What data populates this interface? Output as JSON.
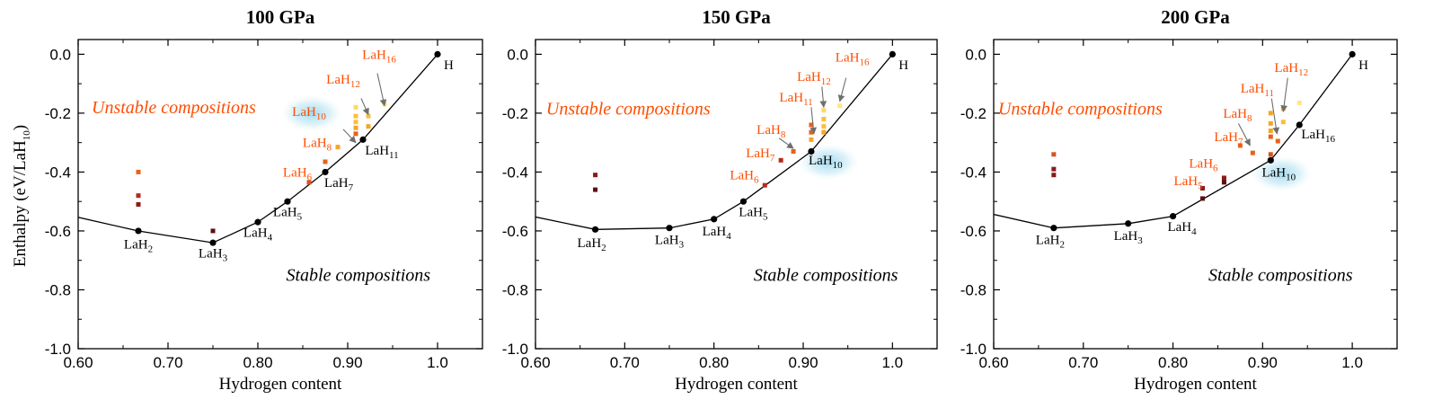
{
  "chart_data": [
    {
      "type": "scatter",
      "title": "100 GPa",
      "xlabel": "Hydrogen content",
      "ylabel": "Enthalpy (eV/LaH10)",
      "xlim": [
        0.6,
        1.05
      ],
      "ylim": [
        -1.0,
        0.05
      ],
      "xticks": [
        "0.60",
        "0.70",
        "0.80",
        "0.90",
        "1.0"
      ],
      "yticks": [
        "0.0",
        "-0.2",
        "-0.4",
        "-0.6",
        "-0.8",
        "-1.0"
      ],
      "region_labels": [
        {
          "text": "Unstable compositions",
          "color": "#ff4d00",
          "x": 0.615,
          "y": -0.2
        },
        {
          "text": "Stable compositions",
          "color": "#000000",
          "x": 0.8315,
          "y": -0.77
        }
      ],
      "hull": [
        [
          0.58,
          -0.54
        ],
        [
          0.667,
          -0.6
        ],
        [
          0.75,
          -0.64
        ],
        [
          0.8,
          -0.57
        ],
        [
          0.833,
          -0.5
        ],
        [
          0.875,
          -0.4
        ],
        [
          0.917,
          -0.29
        ],
        [
          1.0,
          0.0
        ]
      ],
      "stable_points": [
        {
          "x": 0.667,
          "y": -0.6,
          "base": "LaH",
          "sub": "2",
          "lx": 0.667,
          "ly": -0.66
        },
        {
          "x": 0.75,
          "y": -0.64,
          "base": "LaH",
          "sub": "3",
          "lx": 0.75,
          "ly": -0.69
        },
        {
          "x": 0.8,
          "y": -0.57,
          "base": "LaH",
          "sub": "4",
          "lx": 0.8,
          "ly": -0.62
        },
        {
          "x": 0.833,
          "y": -0.5,
          "base": "LaH",
          "sub": "5",
          "lx": 0.833,
          "ly": -0.55
        },
        {
          "x": 0.875,
          "y": -0.4,
          "base": "LaH",
          "sub": "7",
          "lx": 0.89,
          "ly": -0.45
        },
        {
          "x": 0.917,
          "y": -0.29,
          "base": "LaH",
          "sub": "11",
          "lx": 0.938,
          "ly": -0.34
        },
        {
          "x": 1.0,
          "y": 0.0,
          "base": "H",
          "sub": "",
          "lx": 1.007,
          "ly": -0.05
        }
      ],
      "unstable_labels": [
        {
          "base": "LaH",
          "sub": "6",
          "lx": 0.844,
          "ly": -0.415,
          "color": "#ff4d00",
          "highlight": false
        },
        {
          "base": "LaH",
          "sub": "8",
          "lx": 0.866,
          "ly": -0.315,
          "color": "#ff4d00",
          "highlight": false
        },
        {
          "base": "LaH",
          "sub": "10",
          "lx": 0.857,
          "ly": -0.21,
          "color": "#ff4d00",
          "highlight": true
        },
        {
          "base": "LaH",
          "sub": "12",
          "lx": 0.895,
          "ly": -0.1,
          "color": "#ff4d00",
          "highlight": false
        },
        {
          "base": "LaH",
          "sub": "16",
          "lx": 0.935,
          "ly": -0.015,
          "color": "#ff4d00",
          "highlight": false
        }
      ],
      "arrows": [
        {
          "from": [
            0.895,
            -0.255
          ],
          "to": [
            0.909,
            -0.3
          ]
        },
        {
          "from": [
            0.915,
            -0.15
          ],
          "to": [
            0.923,
            -0.205
          ]
        },
        {
          "from": [
            0.933,
            -0.065
          ],
          "to": [
            0.941,
            -0.175
          ]
        }
      ],
      "unstable_points": [
        {
          "x": 0.667,
          "y": -0.4,
          "color": "#e8611a"
        },
        {
          "x": 0.667,
          "y": -0.48,
          "color": "#b52a1c"
        },
        {
          "x": 0.667,
          "y": -0.51,
          "color": "#8b1a1a"
        },
        {
          "x": 0.75,
          "y": -0.6,
          "color": "#5a0f0f"
        },
        {
          "x": 0.857,
          "y": -0.435,
          "color": "#d9531e"
        },
        {
          "x": 0.875,
          "y": -0.365,
          "color": "#e8611a"
        },
        {
          "x": 0.889,
          "y": -0.315,
          "color": "#f5a623"
        },
        {
          "x": 0.909,
          "y": -0.18,
          "color": "#ffd966"
        },
        {
          "x": 0.909,
          "y": -0.21,
          "color": "#fbbf3c"
        },
        {
          "x": 0.909,
          "y": -0.23,
          "color": "#fbbf3c"
        },
        {
          "x": 0.909,
          "y": -0.25,
          "color": "#f5a623"
        },
        {
          "x": 0.909,
          "y": -0.27,
          "color": "#e8611a"
        },
        {
          "x": 0.923,
          "y": -0.21,
          "color": "#fbbf3c"
        },
        {
          "x": 0.923,
          "y": -0.245,
          "color": "#f5a623"
        },
        {
          "x": 0.941,
          "y": -0.17,
          "color": "#ffe680"
        }
      ]
    },
    {
      "type": "scatter",
      "title": "150 GPa",
      "xlabel": "Hydrogen content",
      "ylabel": "",
      "xlim": [
        0.6,
        1.05
      ],
      "ylim": [
        -1.0,
        0.05
      ],
      "xticks": [
        "0.60",
        "0.70",
        "0.80",
        "0.90",
        "1.0"
      ],
      "yticks": [
        "0.0",
        "-0.2",
        "-0.4",
        "-0.6",
        "-0.8",
        "-1.0"
      ],
      "region_labels": [
        {
          "text": "Unstable compositions",
          "color": "#ff4d00",
          "x": 0.612,
          "y": -0.205
        },
        {
          "text": "Stable compositions",
          "color": "#000000",
          "x": 0.8445,
          "y": -0.77
        }
      ],
      "hull": [
        [
          0.58,
          -0.54
        ],
        [
          0.667,
          -0.595
        ],
        [
          0.75,
          -0.59
        ],
        [
          0.8,
          -0.56
        ],
        [
          0.833,
          -0.5
        ],
        [
          0.909,
          -0.33
        ],
        [
          1.0,
          0.0
        ]
      ],
      "stable_points": [
        {
          "x": 0.667,
          "y": -0.595,
          "base": "LaH",
          "sub": "2",
          "lx": 0.663,
          "ly": -0.655
        },
        {
          "x": 0.75,
          "y": -0.59,
          "base": "LaH",
          "sub": "3",
          "lx": 0.75,
          "ly": -0.645
        },
        {
          "x": 0.8,
          "y": -0.56,
          "base": "LaH",
          "sub": "4",
          "lx": 0.803,
          "ly": -0.615
        },
        {
          "x": 0.833,
          "y": -0.5,
          "base": "LaH",
          "sub": "5",
          "lx": 0.844,
          "ly": -0.55
        },
        {
          "x": 0.909,
          "y": -0.33,
          "base": "LaH",
          "sub": "10",
          "lx": 0.925,
          "ly": -0.375
        },
        {
          "x": 1.0,
          "y": 0.0,
          "base": "H",
          "sub": "",
          "lx": 1.007,
          "ly": -0.05
        }
      ],
      "stable_highlight": [
        {
          "lx": 0.925,
          "ly": -0.375
        }
      ],
      "unstable_labels": [
        {
          "base": "LaH",
          "sub": "6",
          "lx": 0.834,
          "ly": -0.425,
          "color": "#ff4d00",
          "highlight": false
        },
        {
          "base": "LaH",
          "sub": "7",
          "lx": 0.852,
          "ly": -0.35,
          "color": "#ff4d00",
          "highlight": false
        },
        {
          "base": "LaH",
          "sub": "8",
          "lx": 0.864,
          "ly": -0.27,
          "color": "#ff4d00",
          "highlight": false
        },
        {
          "base": "LaH",
          "sub": "11",
          "lx": 0.892,
          "ly": -0.16,
          "color": "#ff4d00",
          "highlight": false
        },
        {
          "base": "LaH",
          "sub": "12",
          "lx": 0.912,
          "ly": -0.09,
          "color": "#ff4d00",
          "highlight": false
        },
        {
          "base": "LaH",
          "sub": "16",
          "lx": 0.955,
          "ly": -0.025,
          "color": "#ff4d00",
          "highlight": false
        }
      ],
      "arrows": [
        {
          "from": [
            0.873,
            -0.285
          ],
          "to": [
            0.889,
            -0.32
          ]
        },
        {
          "from": [
            0.909,
            -0.18
          ],
          "to": [
            0.912,
            -0.27
          ]
        },
        {
          "from": [
            0.921,
            -0.11
          ],
          "to": [
            0.923,
            -0.18
          ]
        },
        {
          "from": [
            0.948,
            -0.08
          ],
          "to": [
            0.941,
            -0.16
          ]
        }
      ],
      "unstable_points": [
        {
          "x": 0.667,
          "y": -0.41,
          "color": "#8b1a1a"
        },
        {
          "x": 0.667,
          "y": -0.46,
          "color": "#5a0f0f"
        },
        {
          "x": 0.857,
          "y": -0.445,
          "color": "#b52a1c"
        },
        {
          "x": 0.875,
          "y": -0.36,
          "color": "#b52a1c"
        },
        {
          "x": 0.889,
          "y": -0.33,
          "color": "#e8611a"
        },
        {
          "x": 0.909,
          "y": -0.24,
          "color": "#e8611a"
        },
        {
          "x": 0.909,
          "y": -0.265,
          "color": "#e8611a"
        },
        {
          "x": 0.909,
          "y": -0.29,
          "color": "#f5a623"
        },
        {
          "x": 0.923,
          "y": -0.19,
          "color": "#ffd966"
        },
        {
          "x": 0.923,
          "y": -0.22,
          "color": "#fbbf3c"
        },
        {
          "x": 0.923,
          "y": -0.245,
          "color": "#fbbf3c"
        },
        {
          "x": 0.923,
          "y": -0.265,
          "color": "#f5a623"
        },
        {
          "x": 0.941,
          "y": -0.175,
          "color": "#ffe680"
        }
      ]
    },
    {
      "type": "scatter",
      "title": "200 GPa",
      "xlabel": "Hydrogen content",
      "ylabel": "",
      "xlim": [
        0.6,
        1.05
      ],
      "ylim": [
        -1.0,
        0.05
      ],
      "xticks": [
        "0.60",
        "0.70",
        "0.80",
        "0.90",
        "1.0"
      ],
      "yticks": [
        "0.0",
        "-0.2",
        "-0.4",
        "-0.6",
        "-0.8",
        "-1.0"
      ],
      "region_labels": [
        {
          "text": "Unstable compositions",
          "color": "#ff4d00",
          "x": 0.605,
          "y": -0.205
        },
        {
          "text": "Stable compositions",
          "color": "#000000",
          "x": 0.8395,
          "y": -0.77
        }
      ],
      "hull": [
        [
          0.58,
          -0.53
        ],
        [
          0.667,
          -0.59
        ],
        [
          0.75,
          -0.575
        ],
        [
          0.8,
          -0.55
        ],
        [
          0.909,
          -0.36
        ],
        [
          0.941,
          -0.24
        ],
        [
          1.0,
          0.0
        ]
      ],
      "stable_points": [
        {
          "x": 0.667,
          "y": -0.59,
          "base": "LaH",
          "sub": "2",
          "lx": 0.663,
          "ly": -0.645
        },
        {
          "x": 0.75,
          "y": -0.575,
          "base": "LaH",
          "sub": "3",
          "lx": 0.75,
          "ly": -0.63
        },
        {
          "x": 0.8,
          "y": -0.55,
          "base": "LaH",
          "sub": "4",
          "lx": 0.81,
          "ly": -0.6
        },
        {
          "x": 0.909,
          "y": -0.36,
          "base": "LaH",
          "sub": "10",
          "lx": 0.918,
          "ly": -0.415
        },
        {
          "x": 0.941,
          "y": -0.24,
          "base": "LaH",
          "sub": "16",
          "lx": 0.962,
          "ly": -0.285
        },
        {
          "x": 1.0,
          "y": 0.0,
          "base": "H",
          "sub": "",
          "lx": 1.007,
          "ly": -0.05
        }
      ],
      "stable_highlight": [
        {
          "lx": 0.918,
          "ly": -0.415
        }
      ],
      "unstable_labels": [
        {
          "base": "LaH",
          "sub": "5",
          "lx": 0.817,
          "ly": -0.445,
          "color": "#ff4d00",
          "highlight": false
        },
        {
          "base": "LaH",
          "sub": "6",
          "lx": 0.834,
          "ly": -0.385,
          "color": "#ff4d00",
          "highlight": false
        },
        {
          "base": "LaH",
          "sub": "7",
          "lx": 0.862,
          "ly": -0.295,
          "color": "#ff4d00",
          "highlight": false
        },
        {
          "base": "LaH",
          "sub": "8",
          "lx": 0.872,
          "ly": -0.215,
          "color": "#ff4d00",
          "highlight": false
        },
        {
          "base": "LaH",
          "sub": "11",
          "lx": 0.894,
          "ly": -0.13,
          "color": "#ff4d00",
          "highlight": false
        },
        {
          "base": "LaH",
          "sub": "12",
          "lx": 0.932,
          "ly": -0.06,
          "color": "#ff4d00",
          "highlight": false
        }
      ],
      "arrows": [
        {
          "from": [
            0.873,
            -0.235
          ],
          "to": [
            0.886,
            -0.31
          ]
        },
        {
          "from": [
            0.91,
            -0.15
          ],
          "to": [
            0.916,
            -0.27
          ]
        },
        {
          "from": [
            0.928,
            -0.08
          ],
          "to": [
            0.923,
            -0.195
          ]
        }
      ],
      "unstable_points": [
        {
          "x": 0.667,
          "y": -0.34,
          "color": "#d9531e"
        },
        {
          "x": 0.667,
          "y": -0.39,
          "color": "#8b1a1a"
        },
        {
          "x": 0.667,
          "y": -0.41,
          "color": "#8b1a1a"
        },
        {
          "x": 0.833,
          "y": -0.455,
          "color": "#8b1a1a"
        },
        {
          "x": 0.833,
          "y": -0.49,
          "color": "#5a0f0f"
        },
        {
          "x": 0.857,
          "y": -0.42,
          "color": "#8b1a1a"
        },
        {
          "x": 0.857,
          "y": -0.435,
          "color": "#5a0f0f"
        },
        {
          "x": 0.875,
          "y": -0.31,
          "color": "#e8611a"
        },
        {
          "x": 0.889,
          "y": -0.335,
          "color": "#e8611a"
        },
        {
          "x": 0.909,
          "y": -0.2,
          "color": "#f5a623"
        },
        {
          "x": 0.909,
          "y": -0.235,
          "color": "#f5a623"
        },
        {
          "x": 0.909,
          "y": -0.26,
          "color": "#f5a623"
        },
        {
          "x": 0.909,
          "y": -0.28,
          "color": "#e8611a"
        },
        {
          "x": 0.909,
          "y": -0.34,
          "color": "#d9531e"
        },
        {
          "x": 0.917,
          "y": -0.295,
          "color": "#e8611a"
        },
        {
          "x": 0.923,
          "y": -0.185,
          "color": "#fbbf3c"
        },
        {
          "x": 0.923,
          "y": -0.23,
          "color": "#fbbf3c"
        },
        {
          "x": 0.941,
          "y": -0.165,
          "color": "#ffe680"
        }
      ]
    }
  ]
}
